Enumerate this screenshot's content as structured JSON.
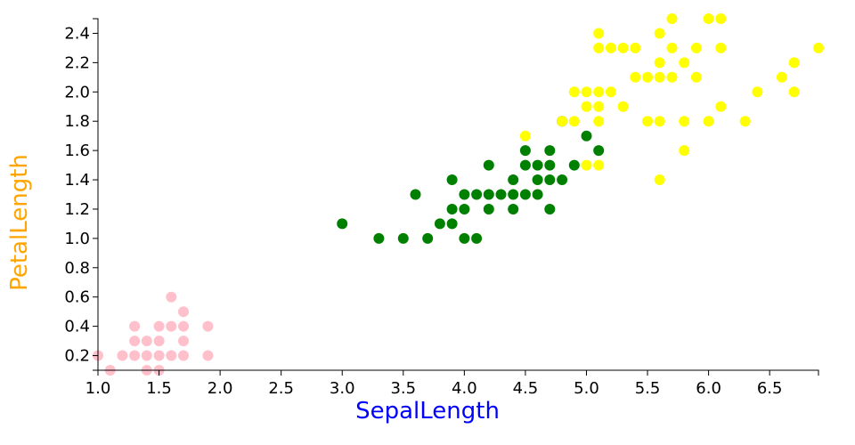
{
  "chart_data": {
    "type": "scatter",
    "xlabel": "SepalLength",
    "ylabel": "PetalLength",
    "xlabel_color": "#0000ff",
    "ylabel_color": "#ffa500",
    "xlim": [
      1.0,
      6.9
    ],
    "ylim": [
      0.1,
      2.5
    ],
    "x_ticks": [
      "1.0",
      "1.5",
      "2.0",
      "2.5",
      "3.0",
      "3.5",
      "4.0",
      "4.5",
      "5.0",
      "5.5",
      "6.0",
      "6.5"
    ],
    "y_ticks": [
      "0.2",
      "0.4",
      "0.6",
      "0.8",
      "1.0",
      "1.2",
      "1.4",
      "1.6",
      "1.8",
      "2.0",
      "2.2",
      "2.4"
    ],
    "grid": false,
    "series": [
      {
        "color": "#ffc0cb",
        "points": [
          [
            1.0,
            0.2
          ],
          [
            1.1,
            0.1
          ],
          [
            1.2,
            0.2
          ],
          [
            1.3,
            0.2
          ],
          [
            1.3,
            0.3
          ],
          [
            1.3,
            0.4
          ],
          [
            1.4,
            0.1
          ],
          [
            1.4,
            0.2
          ],
          [
            1.4,
            0.3
          ],
          [
            1.5,
            0.1
          ],
          [
            1.5,
            0.2
          ],
          [
            1.5,
            0.3
          ],
          [
            1.5,
            0.4
          ],
          [
            1.6,
            0.2
          ],
          [
            1.6,
            0.4
          ],
          [
            1.6,
            0.6
          ],
          [
            1.7,
            0.2
          ],
          [
            1.7,
            0.3
          ],
          [
            1.7,
            0.4
          ],
          [
            1.7,
            0.5
          ],
          [
            1.9,
            0.2
          ],
          [
            1.9,
            0.4
          ]
        ]
      },
      {
        "color": "#008000",
        "points": [
          [
            3.0,
            1.1
          ],
          [
            3.3,
            1.0
          ],
          [
            3.5,
            1.0
          ],
          [
            3.6,
            1.3
          ],
          [
            3.7,
            1.0
          ],
          [
            3.8,
            1.1
          ],
          [
            3.9,
            1.1
          ],
          [
            3.9,
            1.2
          ],
          [
            3.9,
            1.4
          ],
          [
            4.0,
            1.0
          ],
          [
            4.0,
            1.2
          ],
          [
            4.0,
            1.3
          ],
          [
            4.1,
            1.0
          ],
          [
            4.1,
            1.3
          ],
          [
            4.2,
            1.2
          ],
          [
            4.2,
            1.3
          ],
          [
            4.2,
            1.5
          ],
          [
            4.3,
            1.3
          ],
          [
            4.4,
            1.2
          ],
          [
            4.4,
            1.3
          ],
          [
            4.4,
            1.4
          ],
          [
            4.5,
            1.3
          ],
          [
            4.5,
            1.5
          ],
          [
            4.5,
            1.6
          ],
          [
            4.6,
            1.3
          ],
          [
            4.6,
            1.4
          ],
          [
            4.6,
            1.5
          ],
          [
            4.7,
            1.2
          ],
          [
            4.7,
            1.4
          ],
          [
            4.7,
            1.5
          ],
          [
            4.7,
            1.6
          ],
          [
            4.8,
            1.4
          ],
          [
            4.8,
            1.8
          ],
          [
            4.9,
            1.5
          ],
          [
            5.0,
            1.7
          ],
          [
            5.1,
            1.6
          ]
        ]
      },
      {
        "color": "#ffff00",
        "points": [
          [
            4.5,
            1.7
          ],
          [
            4.8,
            1.8
          ],
          [
            4.9,
            1.8
          ],
          [
            4.9,
            2.0
          ],
          [
            5.0,
            1.5
          ],
          [
            5.0,
            1.9
          ],
          [
            5.0,
            2.0
          ],
          [
            5.1,
            1.5
          ],
          [
            5.1,
            1.8
          ],
          [
            5.1,
            1.9
          ],
          [
            5.1,
            2.0
          ],
          [
            5.1,
            2.3
          ],
          [
            5.1,
            2.4
          ],
          [
            5.2,
            2.0
          ],
          [
            5.2,
            2.3
          ],
          [
            5.3,
            1.9
          ],
          [
            5.3,
            2.3
          ],
          [
            5.4,
            2.1
          ],
          [
            5.4,
            2.3
          ],
          [
            5.5,
            1.8
          ],
          [
            5.5,
            2.1
          ],
          [
            5.6,
            1.4
          ],
          [
            5.6,
            1.8
          ],
          [
            5.6,
            2.1
          ],
          [
            5.6,
            2.2
          ],
          [
            5.6,
            2.4
          ],
          [
            5.7,
            2.1
          ],
          [
            5.7,
            2.3
          ],
          [
            5.7,
            2.5
          ],
          [
            5.8,
            1.6
          ],
          [
            5.8,
            1.8
          ],
          [
            5.8,
            2.2
          ],
          [
            5.9,
            2.1
          ],
          [
            5.9,
            2.3
          ],
          [
            6.0,
            1.8
          ],
          [
            6.0,
            2.5
          ],
          [
            6.1,
            1.9
          ],
          [
            6.1,
            2.3
          ],
          [
            6.1,
            2.5
          ],
          [
            6.3,
            1.8
          ],
          [
            6.4,
            2.0
          ],
          [
            6.6,
            2.1
          ],
          [
            6.7,
            2.0
          ],
          [
            6.7,
            2.2
          ],
          [
            6.9,
            2.3
          ]
        ]
      }
    ]
  }
}
